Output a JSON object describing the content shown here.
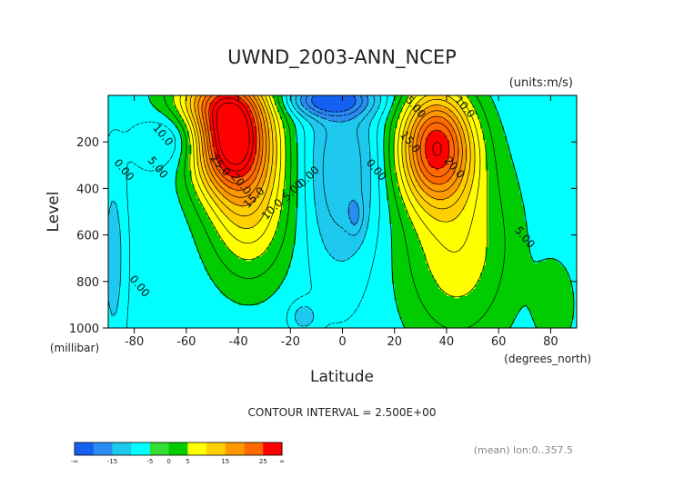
{
  "chart_data": {
    "type": "contour",
    "title": "UWND_2003-ANN_NCEP",
    "units": "(units:m/s)",
    "xlabel": "Latitude",
    "ylabel": "Level",
    "x_units": "(degrees_north)",
    "y_units": "(millibar)",
    "xlim": [
      -90,
      90
    ],
    "ylim": [
      1000,
      10
    ],
    "x_ticks": [
      -80,
      -60,
      -40,
      -20,
      0,
      20,
      40,
      60,
      80
    ],
    "x_tick_labels": [
      "-80",
      "-60",
      "-40",
      "-20",
      "0",
      "20",
      "40",
      "60",
      "80"
    ],
    "y_ticks": [
      200,
      400,
      600,
      800,
      1000
    ],
    "y_tick_labels": [
      "200",
      "400",
      "600",
      "800",
      "1000"
    ],
    "contour_interval_text": "CONTOUR INTERVAL = 2.500E+00",
    "footer_note": "(mean) lon:0..357.5",
    "contour_labels": [
      {
        "text": "10.0",
        "lat": -70,
        "lev": 180
      },
      {
        "text": "5.00",
        "lat": -72,
        "lev": 320
      },
      {
        "text": "0.00",
        "lat": -85,
        "lev": 330
      },
      {
        "text": "25.0",
        "lat": -48,
        "lev": 310
      },
      {
        "text": "20.0",
        "lat": -40,
        "lev": 390
      },
      {
        "text": "15.0",
        "lat": -33,
        "lev": 450
      },
      {
        "text": "10.0",
        "lat": -26,
        "lev": 500
      },
      {
        "text": "5.00",
        "lat": -18,
        "lev": 420
      },
      {
        "text": "0.00",
        "lat": -12,
        "lev": 360
      },
      {
        "text": "0.00",
        "lat": 12,
        "lev": 330
      },
      {
        "text": "5.00",
        "lat": 27,
        "lev": 60
      },
      {
        "text": "10.0",
        "lat": 46,
        "lev": 60
      },
      {
        "text": "15.0",
        "lat": 25,
        "lev": 210
      },
      {
        "text": "20.0",
        "lat": 42,
        "lev": 320
      },
      {
        "text": "5.00",
        "lat": 69,
        "lev": 620
      },
      {
        "text": "0.00",
        "lat": -79,
        "lev": 830
      }
    ],
    "colorbar": {
      "colors": [
        "#1560f0",
        "#2a8cf2",
        "#1ec8ee",
        "#00ffff",
        "#33dd33",
        "#00cc00",
        "#ffff00",
        "#ffd000",
        "#ff9900",
        "#ff6a00",
        "#ff0000"
      ],
      "tick_labels": [
        "-∞",
        "-15",
        "-5",
        "0",
        "5",
        "15",
        "25",
        "∞"
      ]
    },
    "colors": {
      "negative_dark": "#1560f0",
      "negative_light": "#00ffff",
      "weak": "#00cc00",
      "moderate": "#ffff00",
      "strong": "#ff9900",
      "jet": "#ff0000"
    }
  }
}
